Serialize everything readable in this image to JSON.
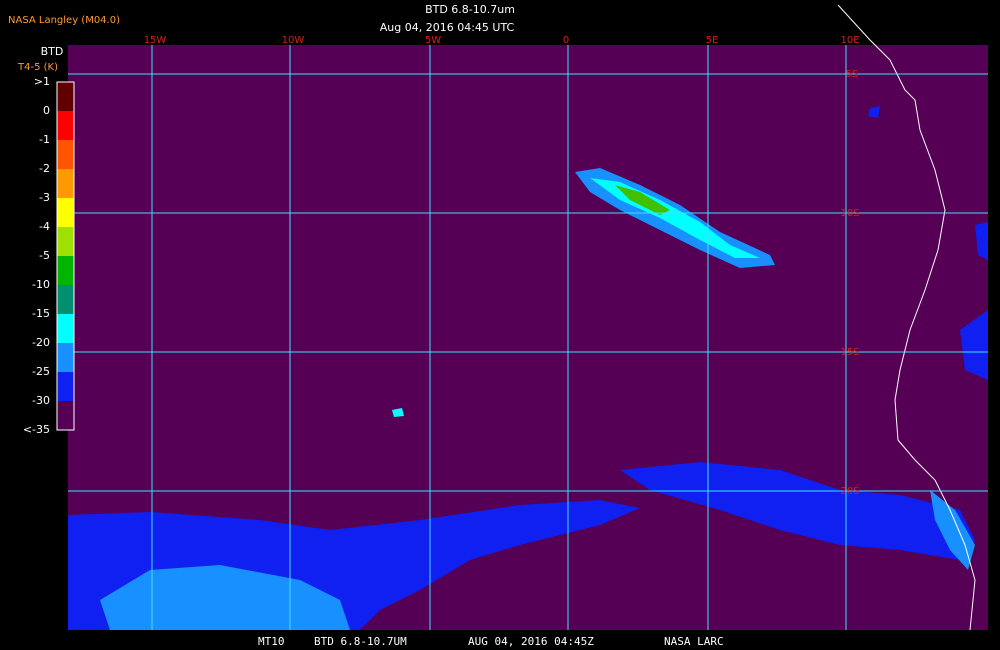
{
  "header": {
    "source": "NASA Langley (M04.0)",
    "title": "BTD 6.8-10.7um",
    "timestamp": "Aug 04, 2016 04:45 UTC"
  },
  "colorbar": {
    "title": "BTD",
    "unit": "T4-5 (K)",
    "labels": [
      ">1",
      "0",
      "-1",
      "-2",
      "-3",
      "-4",
      "-5",
      "-10",
      "-15",
      "-20",
      "-25",
      "-30",
      "<-35"
    ]
  },
  "map": {
    "longitude_labels": [
      "15W",
      "10W",
      "5W",
      "0",
      "5E",
      "10E"
    ],
    "latitude_labels": [
      "5S",
      "10S",
      "15S",
      "20S"
    ]
  },
  "footer": [
    "MT10",
    "BTD 6.8-10.7UM",
    "AUG 04, 2016 04:45Z",
    "NASA LARC"
  ]
}
